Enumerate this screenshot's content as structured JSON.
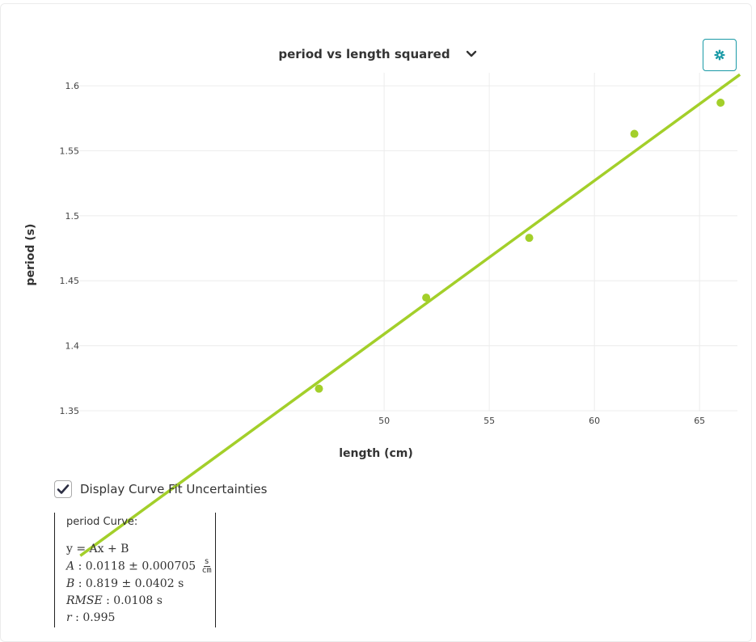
{
  "header": {
    "chart_selector": "period vs length squared",
    "settings_icon": "gear-icon",
    "accent_color": "#1a9aa6"
  },
  "chart_data": {
    "type": "scatter",
    "title": "",
    "xlabel": "length (cm)",
    "ylabel": "period (s)",
    "xlim": [
      35.5,
      66.8
    ],
    "ylim": [
      1.35,
      1.61
    ],
    "x_ticks": [
      50,
      55,
      60,
      65
    ],
    "y_ticks": [
      1.35,
      1.4,
      1.45,
      1.5,
      1.55,
      1.6
    ],
    "grid": true,
    "series": [
      {
        "color": "#a3cf2a",
        "x": [
          46.9,
          52.0,
          56.9,
          61.9,
          66.0
        ],
        "y": [
          1.367,
          1.437,
          1.483,
          1.563,
          1.587
        ]
      }
    ],
    "fit": {
      "type": "linear",
      "slope": 0.0118,
      "intercept": 0.819,
      "color": "#a3cf2a"
    }
  },
  "options": {
    "uncertainties_label": "Display Curve Fit Uncertainties",
    "uncertainties_checked": true
  },
  "fit_results": {
    "title": "period Curve:",
    "equation": "y = Ax + B",
    "A_label": "A",
    "A_value": ": 0.0118 ± 0.000705",
    "A_unit_num": "s",
    "A_unit_den": "cm",
    "B_label": "B",
    "B_value": ": 0.819 ± 0.0402 s",
    "RMSE_label": "RMSE",
    "RMSE_value": ": 0.0108 s",
    "r_label": "r",
    "r_value": ": 0.995"
  }
}
